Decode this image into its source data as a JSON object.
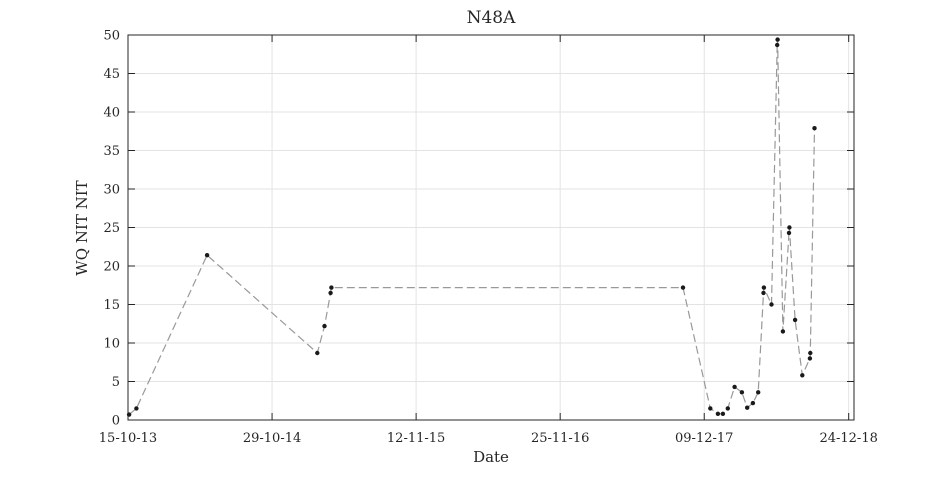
{
  "chart_data": {
    "type": "line",
    "title": "N48A",
    "xlabel": "Date",
    "ylabel": "WQ NIT NIT",
    "ylim": [
      0,
      50
    ],
    "xlim": [
      "2013-10-15",
      "2019-01-07"
    ],
    "grid": true,
    "line_style": "dashed",
    "colors": {
      "line": "#999999",
      "marker": "#1a1a1a",
      "grid": "#e3e3e3",
      "axes": "#262626"
    },
    "x_ticks": [
      {
        "date": "2013-10-15",
        "label": "15-10-13"
      },
      {
        "date": "2014-10-29",
        "label": "29-10-14"
      },
      {
        "date": "2015-11-12",
        "label": "12-11-15"
      },
      {
        "date": "2016-11-25",
        "label": "25-11-16"
      },
      {
        "date": "2017-12-09",
        "label": "09-12-17"
      },
      {
        "date": "2018-12-24",
        "label": "24-12-18"
      }
    ],
    "y_ticks": [
      0,
      5,
      10,
      15,
      20,
      25,
      30,
      35,
      40,
      45,
      50
    ],
    "series": [
      {
        "points": [
          {
            "x": "2013-10-18",
            "y": 0.7
          },
          {
            "x": "2013-11-06",
            "y": 1.5
          },
          {
            "x": "2014-05-11",
            "y": 21.4
          },
          {
            "x": "2015-02-25",
            "y": 8.7
          },
          {
            "x": "2015-03-16",
            "y": 12.2
          },
          {
            "x": "2015-04-01",
            "y": 16.5
          },
          {
            "x": "2015-04-03",
            "y": 17.2
          },
          {
            "x": "2017-10-14",
            "y": 17.2
          },
          {
            "x": "2017-12-25",
            "y": 1.5
          },
          {
            "x": "2018-01-14",
            "y": 0.8
          },
          {
            "x": "2018-01-27",
            "y": 0.8
          },
          {
            "x": "2018-02-09",
            "y": 1.5
          },
          {
            "x": "2018-02-27",
            "y": 4.3
          },
          {
            "x": "2018-03-18",
            "y": 3.6
          },
          {
            "x": "2018-04-01",
            "y": 1.6
          },
          {
            "x": "2018-04-16",
            "y": 2.2
          },
          {
            "x": "2018-04-30",
            "y": 3.6
          },
          {
            "x": "2018-05-14",
            "y": 16.5
          },
          {
            "x": "2018-05-15",
            "y": 17.2
          },
          {
            "x": "2018-06-04",
            "y": 15.0
          },
          {
            "x": "2018-06-19",
            "y": 48.7
          },
          {
            "x": "2018-06-20",
            "y": 49.4
          },
          {
            "x": "2018-07-04",
            "y": 11.5
          },
          {
            "x": "2018-07-20",
            "y": 24.3
          },
          {
            "x": "2018-07-21",
            "y": 25.0
          },
          {
            "x": "2018-08-05",
            "y": 13.0
          },
          {
            "x": "2018-08-24",
            "y": 5.8
          },
          {
            "x": "2018-09-13",
            "y": 8.0
          },
          {
            "x": "2018-09-14",
            "y": 8.7
          },
          {
            "x": "2018-09-25",
            "y": 37.9
          }
        ]
      }
    ]
  }
}
